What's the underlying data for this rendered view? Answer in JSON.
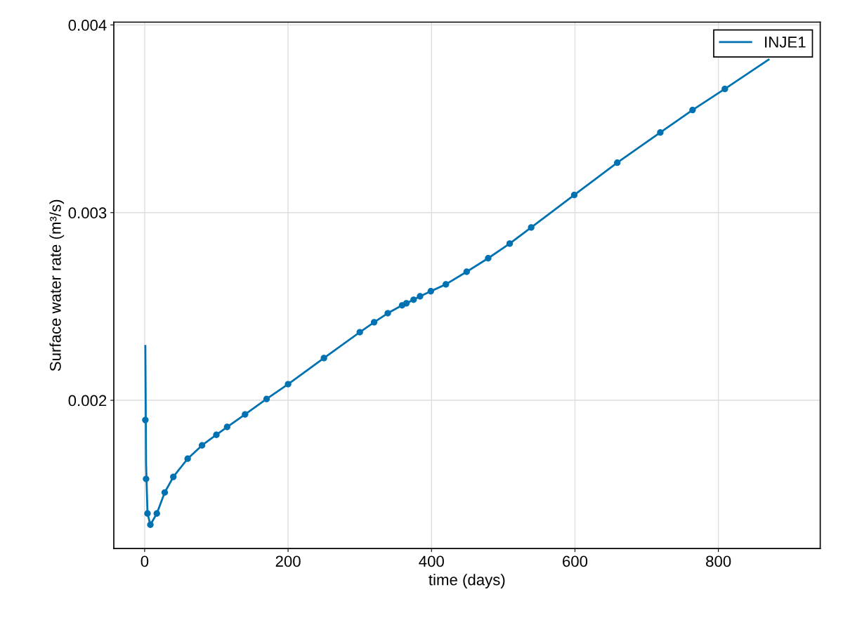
{
  "chart_data": {
    "type": "line",
    "xlabel": "time (days)",
    "ylabel": "Surface water rate (m³/s)",
    "xlim": [
      -43,
      942
    ],
    "ylim": [
      0.00121,
      0.004015
    ],
    "xticks": [
      0,
      200,
      400,
      600,
      800
    ],
    "yticks": [
      {
        "value": 0.002,
        "label": "0.002"
      },
      {
        "value": 0.003,
        "label": "0.003"
      },
      {
        "value": 0.004,
        "label": "0.004"
      }
    ],
    "grid": true,
    "legend": "top right",
    "series": [
      {
        "name": "INJE1",
        "type": "line",
        "color": "#0072b2",
        "marker": "none",
        "line_style": "solid",
        "x": [
          1,
          2,
          4,
          8,
          17,
          28,
          40,
          60,
          80,
          100,
          115,
          140,
          170,
          200,
          250,
          300,
          320,
          339,
          359,
          365,
          375,
          384,
          399,
          420,
          449,
          479,
          509,
          539,
          599,
          659,
          719,
          764,
          809,
          870
        ],
        "values": [
          0.00229,
          0.00166,
          0.001397,
          0.001337,
          0.001397,
          0.001509,
          0.001592,
          0.001689,
          0.00176,
          0.001816,
          0.001858,
          0.001925,
          0.002007,
          0.002086,
          0.002225,
          0.002363,
          0.002416,
          0.002464,
          0.002506,
          0.002517,
          0.002536,
          0.002554,
          0.002581,
          0.002618,
          0.002685,
          0.002757,
          0.002835,
          0.002921,
          0.003094,
          0.003266,
          0.003427,
          0.003547,
          0.003659,
          0.003815
        ]
      },
      {
        "type": "scatter",
        "color": "#0072b2",
        "marker": "circle",
        "x": [
          1,
          2,
          4,
          8,
          17,
          28,
          40,
          60,
          80,
          100,
          115,
          140,
          170,
          200,
          250,
          300,
          320,
          339,
          359,
          365,
          375,
          384,
          399,
          420,
          449,
          479,
          509,
          539,
          599,
          659,
          719,
          764,
          809
        ],
        "values": [
          0.001895,
          0.001581,
          0.001397,
          0.001337,
          0.001397,
          0.001509,
          0.001592,
          0.001689,
          0.00176,
          0.001816,
          0.001858,
          0.001925,
          0.002007,
          0.002086,
          0.002225,
          0.002363,
          0.002416,
          0.002464,
          0.002506,
          0.002517,
          0.002536,
          0.002554,
          0.002581,
          0.002618,
          0.002685,
          0.002757,
          0.002835,
          0.002921,
          0.003094,
          0.003266,
          0.003427,
          0.003547,
          0.003659
        ]
      }
    ]
  }
}
